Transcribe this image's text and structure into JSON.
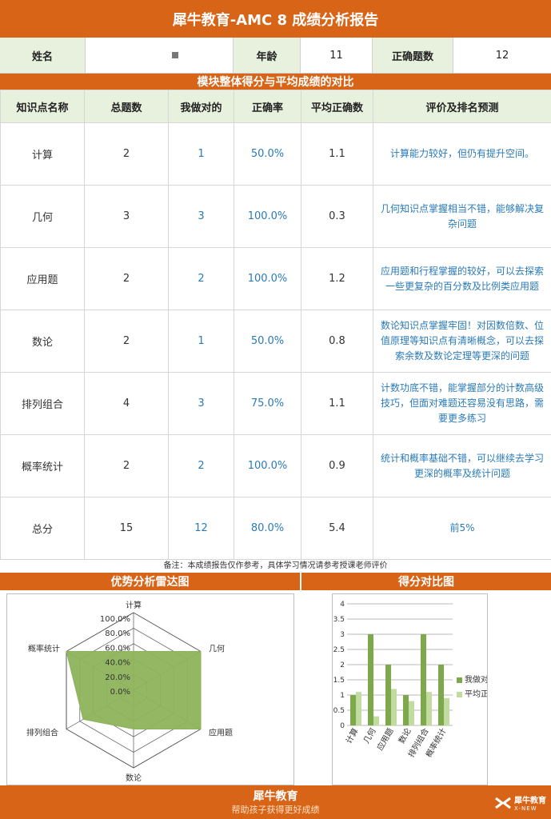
{
  "header": {
    "title": "犀牛教育-AMC 8 成绩分析报告"
  },
  "info": {
    "name_label": "姓名",
    "name_value": "",
    "age_label": "年龄",
    "age_value": "11",
    "correct_label": "正确题数",
    "correct_value": "12"
  },
  "section1": {
    "title": "模块整体得分与平均成绩的对比"
  },
  "table": {
    "headers": [
      "知识点名称",
      "总题数",
      "我做对的",
      "正确率",
      "平均正确数",
      "评价及排名预测"
    ],
    "rows": [
      {
        "topic": "计算",
        "total": "2",
        "correct": "1",
        "rate": "50.0%",
        "avg": "1.1",
        "comment": "计算能力较好，但仍有提升空间。"
      },
      {
        "topic": "几何",
        "total": "3",
        "correct": "3",
        "rate": "100.0%",
        "avg": "0.3",
        "comment": "几何知识点掌握相当不错，能够解决复杂问题"
      },
      {
        "topic": "应用题",
        "total": "2",
        "correct": "2",
        "rate": "100.0%",
        "avg": "1.2",
        "comment": "应用题和行程掌握的较好，可以去探索一些更复杂的百分数及比例类应用题"
      },
      {
        "topic": "数论",
        "total": "2",
        "correct": "1",
        "rate": "50.0%",
        "avg": "0.8",
        "comment": "数论知识点掌握牢固！对因数倍数、位值原理等知识点有清晰概念，可以去探索余数及数论定理等更深的问题"
      },
      {
        "topic": "排列组合",
        "total": "4",
        "correct": "3",
        "rate": "75.0%",
        "avg": "1.1",
        "comment": "计数功底不错，能掌握部分的计数高级技巧，但面对难题还容易没有思路，需要更多练习"
      },
      {
        "topic": "概率统计",
        "total": "2",
        "correct": "2",
        "rate": "100.0%",
        "avg": "0.9",
        "comment": "统计和概率基础不错，可以继续去学习更深的概率及统计问题"
      },
      {
        "topic": "总分",
        "total": "15",
        "correct": "12",
        "rate": "80.0%",
        "avg": "5.4",
        "comment": "前5%"
      }
    ]
  },
  "note": "备注：本成绩报告仅作参考，具体学习情况请参考授课老师评价",
  "section2": {
    "radar_title": "优势分析雷达图",
    "bar_title": "得分对比图"
  },
  "chart_data": [
    {
      "type": "radar",
      "categories": [
        "计算",
        "几何",
        "应用题",
        "数论",
        "排列组合",
        "概率统计"
      ],
      "series": [
        {
          "values": [
            0.5,
            1.0,
            1.0,
            0.5,
            0.75,
            1.0
          ]
        }
      ],
      "tick_labels": [
        "100.0%",
        "80.0%",
        "60.0%",
        "40.0%",
        "20.0%",
        "0.0%"
      ],
      "range": [
        0,
        1
      ],
      "color": "#8db35a"
    },
    {
      "type": "bar",
      "categories": [
        "计算",
        "几何",
        "应用题",
        "数论",
        "排列组合",
        "概率统计"
      ],
      "series": [
        {
          "name": "我做对的",
          "values": [
            1,
            3,
            2,
            1,
            3,
            2
          ],
          "color": "#7ea84c"
        },
        {
          "name": "平均正确数",
          "values": [
            1.1,
            0.3,
            1.2,
            0.8,
            1.1,
            0.9
          ],
          "color": "#c2dba0"
        }
      ],
      "ylim": [
        0,
        4
      ],
      "yticks": [
        "0",
        "0.5",
        "1",
        "1.5",
        "2",
        "2.5",
        "3",
        "3.5",
        "4"
      ],
      "legend_position": "right"
    }
  ],
  "footer": {
    "brand": "犀牛教育",
    "slogan": "帮助孩子获得更好成绩",
    "watermark_cn": "犀牛教育",
    "watermark_en": "X-NEW"
  },
  "colors": {
    "orange": "#d86418",
    "header_green": "#e8f1de",
    "text_blue": "#2a7ab8"
  }
}
